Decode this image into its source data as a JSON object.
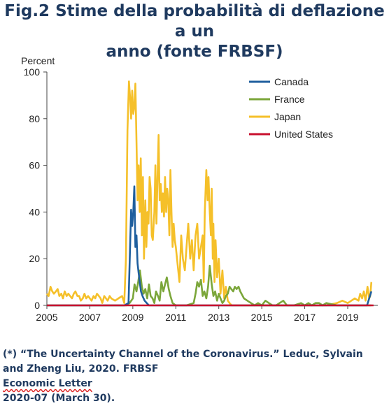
{
  "title": {
    "line1": "Fig.2 Stime della probabilità di deflazione a un",
    "line2": "anno (fonte FRBSF)"
  },
  "note": {
    "line1": "(*) “The Uncertainty Channel of the Coronavirus.” Leduc, Sylvain",
    "line2_prefix": "and Zheng Liu, 2020. FRBSF ",
    "line2_marked": "Economic Letter",
    "line2_suffix": " 2020-07 (March 30)."
  },
  "chart_data": {
    "type": "line",
    "ylabel": "Percent",
    "xlabel": "",
    "xlim": [
      2005,
      2020.4
    ],
    "ylim": [
      0,
      100
    ],
    "xticks": [
      2005,
      2007,
      2009,
      2011,
      2013,
      2015,
      2017,
      2019
    ],
    "yticks": [
      0,
      20,
      40,
      60,
      80,
      100
    ],
    "grid": false,
    "legend_position": "top-right",
    "series": [
      {
        "name": "Canada",
        "color": "#1f5f9e",
        "x": [
          2005.0,
          2008.6,
          2008.8,
          2008.92,
          2008.97,
          2009.02,
          2009.07,
          2009.12,
          2009.17,
          2009.22,
          2009.27,
          2009.32,
          2009.38,
          2009.45,
          2009.55,
          2009.65,
          2009.75,
          2010.0,
          2019.9,
          2020.0,
          2020.1
        ],
        "values": [
          0,
          0,
          1,
          41,
          34,
          40,
          51,
          25,
          30,
          18,
          14,
          10,
          6,
          4,
          2,
          1,
          0,
          0,
          0,
          3,
          6
        ]
      },
      {
        "name": "France",
        "color": "#7ba63a",
        "x": [
          2005.0,
          2008.7,
          2008.85,
          2009.0,
          2009.08,
          2009.17,
          2009.25,
          2009.33,
          2009.42,
          2009.5,
          2009.58,
          2009.67,
          2009.75,
          2009.83,
          2009.92,
          2010.0,
          2010.08,
          2010.17,
          2010.25,
          2010.33,
          2010.42,
          2010.5,
          2010.58,
          2010.67,
          2010.75,
          2010.85,
          2011.0,
          2011.5,
          2011.83,
          2011.92,
          2012.0,
          2012.08,
          2012.17,
          2012.25,
          2012.33,
          2012.42,
          2012.5,
          2012.58,
          2012.67,
          2012.75,
          2012.83,
          2012.92,
          2013.0,
          2013.08,
          2013.17,
          2013.25,
          2013.33,
          2013.42,
          2013.5,
          2013.58,
          2013.67,
          2013.75,
          2013.83,
          2013.92,
          2014.0,
          2014.17,
          2014.33,
          2014.5,
          2014.67,
          2014.83,
          2015.0,
          2015.17,
          2015.33,
          2015.5,
          2015.67,
          2015.83,
          2016.0,
          2016.17,
          2016.5,
          2016.83,
          2017.0,
          2017.17,
          2017.33,
          2017.5,
          2017.67,
          2017.83,
          2018.0,
          2018.5,
          2019.0,
          2019.83,
          2020.1
        ],
        "values": [
          0,
          0,
          1,
          3,
          9,
          6,
          10,
          15,
          8,
          5,
          7,
          3,
          9,
          4,
          3,
          1,
          6,
          4,
          2,
          10,
          6,
          9,
          12,
          7,
          4,
          1,
          0,
          0,
          1,
          5,
          10,
          8,
          11,
          4,
          6,
          3,
          8,
          17,
          9,
          4,
          6,
          2,
          5,
          3,
          1,
          2,
          4,
          5,
          8,
          7,
          6,
          8,
          7,
          8,
          6,
          3,
          2,
          1,
          0,
          1,
          0,
          2,
          1,
          0,
          0,
          1,
          2,
          0,
          0,
          1,
          0,
          1,
          0,
          1,
          1,
          0,
          1,
          0,
          0,
          0,
          0
        ]
      },
      {
        "name": "Japan",
        "color": "#f5c02a",
        "x": [
          2005.0,
          2005.08,
          2005.17,
          2005.25,
          2005.33,
          2005.42,
          2005.5,
          2005.58,
          2005.67,
          2005.75,
          2005.83,
          2005.92,
          2006.0,
          2006.08,
          2006.17,
          2006.25,
          2006.33,
          2006.42,
          2006.5,
          2006.58,
          2006.67,
          2006.75,
          2006.83,
          2006.92,
          2007.0,
          2007.08,
          2007.17,
          2007.25,
          2007.33,
          2007.42,
          2007.5,
          2007.58,
          2007.67,
          2007.75,
          2007.83,
          2007.92,
          2008.0,
          2008.17,
          2008.33,
          2008.5,
          2008.6,
          2008.68,
          2008.75,
          2008.82,
          2008.88,
          2008.92,
          2008.97,
          2009.02,
          2009.07,
          2009.12,
          2009.17,
          2009.22,
          2009.27,
          2009.32,
          2009.37,
          2009.42,
          2009.47,
          2009.52,
          2009.58,
          2009.63,
          2009.68,
          2009.73,
          2009.78,
          2009.83,
          2009.88,
          2009.93,
          2010.0,
          2010.05,
          2010.1,
          2010.15,
          2010.2,
          2010.25,
          2010.3,
          2010.35,
          2010.4,
          2010.45,
          2010.5,
          2010.55,
          2010.6,
          2010.65,
          2010.7,
          2010.75,
          2010.8,
          2010.85,
          2010.9,
          2010.95,
          2011.0,
          2011.08,
          2011.17,
          2011.25,
          2011.33,
          2011.42,
          2011.5,
          2011.58,
          2011.67,
          2011.75,
          2011.83,
          2011.92,
          2012.0,
          2012.08,
          2012.17,
          2012.25,
          2012.3,
          2012.35,
          2012.42,
          2012.48,
          2012.52,
          2012.58,
          2012.63,
          2012.67,
          2012.72,
          2012.75,
          2012.8,
          2012.85,
          2012.92,
          2013.0,
          2013.08,
          2013.17,
          2013.25,
          2013.33,
          2013.42,
          2013.5,
          2013.6,
          2013.75,
          2014.0,
          2014.5,
          2015.0,
          2016.0,
          2017.0,
          2018.0,
          2018.5,
          2018.75,
          2019.0,
          2019.17,
          2019.33,
          2019.5,
          2019.58,
          2019.67,
          2019.75,
          2019.83,
          2019.92,
          2020.0,
          2020.05,
          2020.1
        ],
        "values": [
          5,
          4,
          8,
          6,
          5,
          6,
          7,
          4,
          5,
          3,
          6,
          4,
          5,
          4,
          3,
          5,
          6,
          4,
          4,
          2,
          3,
          5,
          3,
          4,
          3,
          2,
          4,
          3,
          5,
          4,
          3,
          1,
          4,
          3,
          2,
          4,
          3,
          2,
          3,
          4,
          1,
          20,
          75,
          96,
          88,
          80,
          92,
          82,
          85,
          95,
          70,
          45,
          60,
          40,
          63,
          30,
          55,
          20,
          45,
          25,
          40,
          35,
          55,
          50,
          30,
          28,
          40,
          60,
          35,
          55,
          73,
          45,
          52,
          40,
          48,
          38,
          55,
          40,
          50,
          45,
          30,
          58,
          40,
          25,
          35,
          28,
          25,
          18,
          10,
          30,
          20,
          15,
          25,
          35,
          20,
          28,
          15,
          30,
          35,
          20,
          25,
          30,
          10,
          40,
          58,
          45,
          55,
          40,
          30,
          50,
          20,
          35,
          10,
          28,
          12,
          20,
          5,
          15,
          3,
          8,
          2,
          1,
          0,
          0,
          0,
          0,
          0,
          0,
          0,
          0,
          1,
          2,
          1,
          2,
          3,
          2,
          5,
          3,
          6,
          2,
          8,
          3,
          4,
          10
        ]
      },
      {
        "name": "United States",
        "color": "#c8102e",
        "x": [
          2005.0,
          2020.2
        ],
        "values": [
          0,
          0
        ]
      }
    ]
  }
}
